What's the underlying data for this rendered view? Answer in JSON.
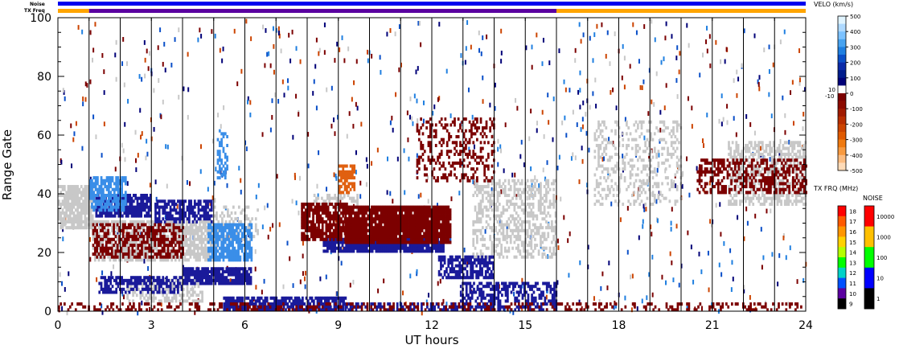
{
  "chart_data": {
    "type": "heatmap",
    "xlabel": "UT hours",
    "ylabel": "Range Gate",
    "xlim": [
      0,
      24
    ],
    "ylim": [
      0,
      100
    ],
    "x_ticks": [
      "0",
      "3",
      "6",
      "9",
      "12",
      "15",
      "18",
      "21",
      "24"
    ],
    "y_ticks": [
      "0",
      "20",
      "40",
      "60",
      "80",
      "100"
    ],
    "scan_boundaries_ut": [
      1,
      2,
      3,
      4,
      5,
      6,
      7,
      8,
      9,
      10,
      11,
      12,
      13,
      14,
      15,
      16,
      17,
      18,
      19,
      20,
      21,
      22,
      23
    ],
    "status_bars": {
      "noise_label": "Noise",
      "txfreq_label": "TX Freq",
      "noise_color": "#0000ee",
      "txfreq_segments": [
        {
          "start": 0,
          "end": 1,
          "color": "#ffa500"
        },
        {
          "start": 1,
          "end": 16,
          "color": "#5a00a0"
        },
        {
          "start": 16,
          "end": 24,
          "color": "#ffa500"
        }
      ]
    },
    "velocity_scale": {
      "title": "VELO (km/s)",
      "labels": [
        "500",
        "400",
        "300",
        "200",
        "100",
        "0",
        "-100",
        "-200",
        "-300",
        "-400",
        "-500"
      ],
      "side_labels": [
        "10",
        "-10"
      ],
      "colors": [
        "#e0f4ff",
        "#aed9ff",
        "#7cc2ff",
        "#47a3f0",
        "#1f7fe0",
        "#0a4fc8",
        "#0a2aa8",
        "#001c8c",
        "#000078",
        "#ffffff",
        "#7c0000",
        "#8c0a00",
        "#a01a00",
        "#b82e00",
        "#cc4400",
        "#e05a00",
        "#f07a10",
        "#f89a40",
        "#fcbc80",
        "#fedbb8"
      ]
    },
    "txfreq_scale": {
      "title": "TX FRQ (MHz)",
      "labels": [
        "18",
        "17",
        "16",
        "15",
        "14",
        "13",
        "12",
        "11",
        "10",
        "9"
      ],
      "colors": [
        "#ff0000",
        "#ff5a00",
        "#ff9600",
        "#ffd200",
        "#b4ff00",
        "#00ff00",
        "#00d2c8",
        "#0050ff",
        "#5a00a0",
        "#000000"
      ]
    },
    "noise_scale": {
      "title": "NOISE",
      "labels": [
        "10000",
        "1000",
        "100",
        "10",
        "1"
      ],
      "colors": [
        "#ff0000",
        "#ffc000",
        "#00ff00",
        "#0000ff",
        "#000000"
      ]
    },
    "grid": false,
    "series": [
      {
        "color": "#c8c8c8",
        "regions": [
          {
            "x0": 0,
            "x1": 1.1,
            "y0": 28,
            "y1": 43,
            "density": 0.85
          },
          {
            "x0": 1.1,
            "x1": 5.1,
            "y0": 17,
            "y1": 31,
            "density": 0.7
          },
          {
            "x0": 2.2,
            "x1": 4.6,
            "y0": 3,
            "y1": 11,
            "density": 0.55
          },
          {
            "x0": 5.0,
            "x1": 6.4,
            "y0": 24,
            "y1": 36,
            "density": 0.3
          },
          {
            "x0": 8.2,
            "x1": 9.6,
            "y0": 34,
            "y1": 40,
            "density": 0.45
          },
          {
            "x0": 13.3,
            "x1": 16.0,
            "y0": 18,
            "y1": 45,
            "density": 0.45
          },
          {
            "x0": 17.2,
            "x1": 20.0,
            "y0": 36,
            "y1": 65,
            "density": 0.25
          },
          {
            "x0": 21.5,
            "x1": 24.0,
            "y0": 36,
            "y1": 58,
            "density": 0.55
          }
        ]
      },
      {
        "color": "#1a1a9a",
        "regions": [
          {
            "x0": 1.2,
            "x1": 3.0,
            "y0": 32,
            "y1": 40,
            "density": 0.85
          },
          {
            "x0": 3.1,
            "x1": 4.9,
            "y0": 30,
            "y1": 38,
            "density": 0.65
          },
          {
            "x0": 1.3,
            "x1": 4.0,
            "y0": 6,
            "y1": 12,
            "density": 0.6
          },
          {
            "x0": 4.0,
            "x1": 6.2,
            "y0": 9,
            "y1": 15,
            "density": 0.85
          },
          {
            "x0": 5.3,
            "x1": 9.2,
            "y0": 0,
            "y1": 5,
            "density": 0.8
          },
          {
            "x0": 8.5,
            "x1": 12.4,
            "y0": 20,
            "y1": 25,
            "density": 0.9
          },
          {
            "x0": 12.2,
            "x1": 14.0,
            "y0": 11,
            "y1": 19,
            "density": 0.65
          },
          {
            "x0": 12.9,
            "x1": 16.0,
            "y0": 3,
            "y1": 10,
            "density": 0.55
          },
          {
            "x0": 9.0,
            "x1": 16.0,
            "y0": 0,
            "y1": 3,
            "density": 0.5
          }
        ]
      },
      {
        "color": "#3a8ee8",
        "regions": [
          {
            "x0": 1.0,
            "x1": 2.2,
            "y0": 34,
            "y1": 46,
            "density": 0.75
          },
          {
            "x0": 4.8,
            "x1": 6.2,
            "y0": 17,
            "y1": 30,
            "density": 0.75
          },
          {
            "x0": 5.1,
            "x1": 5.4,
            "y0": 45,
            "y1": 62,
            "density": 0.4
          }
        ]
      },
      {
        "color": "#7c0000",
        "regions": [
          {
            "x0": 1.1,
            "x1": 4.0,
            "y0": 18,
            "y1": 30,
            "density": 0.55
          },
          {
            "x0": 7.8,
            "x1": 9.3,
            "y0": 24,
            "y1": 37,
            "density": 0.8
          },
          {
            "x0": 9.2,
            "x1": 12.6,
            "y0": 23,
            "y1": 36,
            "density": 0.95
          },
          {
            "x0": 11.5,
            "x1": 14.0,
            "y0": 44,
            "y1": 66,
            "density": 0.3
          },
          {
            "x0": 0,
            "x1": 24.0,
            "y0": 0,
            "y1": 3,
            "density": 0.3
          },
          {
            "x0": 20.5,
            "x1": 24.0,
            "y0": 40,
            "y1": 52,
            "density": 0.45
          }
        ]
      },
      {
        "color": "#e06010",
        "regions": [
          {
            "x0": 9.0,
            "x1": 9.5,
            "y0": 40,
            "y1": 50,
            "density": 0.7
          }
        ]
      }
    ]
  }
}
